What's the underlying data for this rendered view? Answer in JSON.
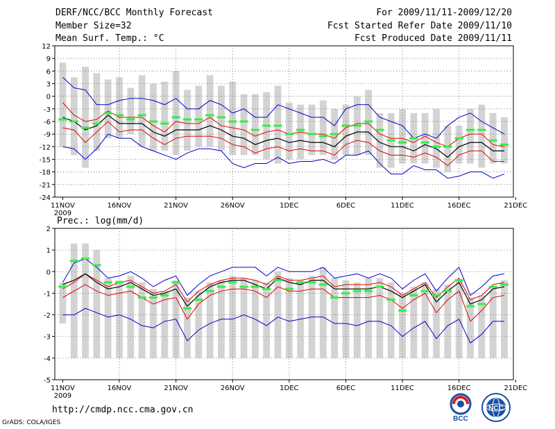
{
  "header": {
    "title": "DERF/NCC/BCC Monthly Forecast",
    "member_size": "Member Size=32",
    "variable": "Mean Surf. Temp.: °C",
    "period": "For 2009/11/11-2009/12/20",
    "started": "Fcst Started Refer Date 2009/11/10",
    "produced": "Fcst Produced Date 2009/11/11"
  },
  "footer": {
    "url": "http://cmdp.ncc.cma.gov.cn",
    "credit": "GrADS: COLA/IGES",
    "logo_bcc": "BCC",
    "logo_ncc": "NCC"
  },
  "colors": {
    "spread": "#d3d3d3",
    "mean": "#000000",
    "inner": "#e00000",
    "outer": "#0000cc",
    "obs": "#33ee44",
    "grid": "#666666"
  },
  "chart_data": [
    {
      "type": "line",
      "title": "Mean Surf. Temp.: °C",
      "ylim": [
        -24,
        12
      ],
      "yticks": [
        -24,
        -21,
        -18,
        -15,
        -12,
        -9,
        -6,
        -3,
        0,
        3,
        6,
        9,
        12
      ],
      "xlabels": [
        "11NOV",
        "16NOV",
        "21NOV",
        "26NOV",
        "1DEC",
        "6DEC",
        "11DEC",
        "16DEC",
        "21DEC"
      ],
      "xsublabel": "2009",
      "x": [
        1,
        2,
        3,
        4,
        5,
        6,
        7,
        8,
        9,
        10,
        11,
        12,
        13,
        14,
        15,
        16,
        17,
        18,
        19,
        20,
        21,
        22,
        23,
        24,
        25,
        26,
        27,
        28,
        29,
        30,
        31,
        32,
        33,
        34,
        35,
        36,
        37,
        38,
        39,
        40
      ],
      "series": [
        {
          "name": "spread_max",
          "values": [
            8,
            4.5,
            7,
            5.5,
            4,
            4.5,
            2,
            5,
            3,
            3.5,
            6,
            1.5,
            2.5,
            5,
            2.5,
            3.5,
            0.5,
            0.5,
            1,
            2.5,
            -1.5,
            -2,
            -2,
            -1,
            -3,
            -2,
            0,
            1.5,
            -4,
            -4,
            -3,
            -4,
            -4,
            -3,
            -7,
            -7,
            -3,
            -2,
            -4,
            -5
          ]
        },
        {
          "name": "spread_min",
          "values": [
            -12,
            -14,
            -17,
            -13,
            -10,
            -10,
            -9,
            -12,
            -13,
            -13,
            -14,
            -13,
            -12,
            -12,
            -13,
            -14,
            -14,
            -14,
            -15,
            -16,
            -15,
            -15,
            -14,
            -14,
            -15,
            -14,
            -14,
            -14,
            -17,
            -17,
            -16,
            -16,
            -16,
            -17,
            -18,
            -16,
            -16,
            -17,
            -16,
            -16
          ]
        },
        {
          "name": "outer_max",
          "values": [
            4.5,
            2,
            1.5,
            -2,
            -2,
            -1,
            -0.5,
            -0.5,
            -1,
            -2,
            -0.5,
            -3,
            -3,
            -1,
            -2,
            -4,
            -3,
            -5,
            -5,
            -2,
            -3,
            -4,
            -5,
            -5,
            -7,
            -3,
            -2,
            -2,
            -5,
            -6,
            -7,
            -10,
            -9,
            -10,
            -7,
            -5,
            -4,
            -6,
            -7.5,
            -9
          ]
        },
        {
          "name": "inner_max",
          "values": [
            -1.5,
            -4.5,
            -6,
            -5.5,
            -3.5,
            -5,
            -5,
            -5,
            -7,
            -8.5,
            -6,
            -6.5,
            -6.5,
            -5,
            -7,
            -7.5,
            -8,
            -9.5,
            -8.5,
            -8,
            -9,
            -8.5,
            -9,
            -9,
            -10,
            -7.5,
            -6.5,
            -6.5,
            -9,
            -10,
            -10,
            -11,
            -9.5,
            -11,
            -12,
            -10,
            -9,
            -9,
            -11.5,
            -12
          ]
        },
        {
          "name": "mean",
          "values": [
            -5,
            -6,
            -8,
            -7,
            -4.5,
            -6.5,
            -6.5,
            -6.5,
            -8.5,
            -9.5,
            -8,
            -8,
            -8,
            -7,
            -8,
            -9.5,
            -10,
            -11.5,
            -10.5,
            -10,
            -11,
            -10.5,
            -11,
            -11,
            -12,
            -9.5,
            -8.5,
            -8.5,
            -11,
            -12,
            -12,
            -13,
            -11.5,
            -12.5,
            -14.5,
            -12,
            -11,
            -11,
            -13,
            -13
          ]
        },
        {
          "name": "inner_min",
          "values": [
            -7.5,
            -8,
            -11,
            -8.5,
            -6,
            -8.5,
            -8,
            -8,
            -10,
            -11.5,
            -10,
            -9.5,
            -9.5,
            -9.5,
            -10,
            -11.5,
            -12,
            -13.5,
            -12.5,
            -12,
            -13,
            -12.5,
            -13,
            -13,
            -14,
            -11.5,
            -10.5,
            -11,
            -13,
            -14,
            -14,
            -14.5,
            -13.5,
            -14.5,
            -16.5,
            -14,
            -13,
            -13,
            -15.5,
            -15.5
          ]
        },
        {
          "name": "outer_min",
          "values": [
            -12,
            -12.5,
            -15,
            -12.5,
            -9,
            -10,
            -10,
            -12,
            -13,
            -14,
            -15,
            -13.5,
            -12.5,
            -12.5,
            -13,
            -16,
            -17,
            -16,
            -16,
            -14.5,
            -16,
            -15.5,
            -15.5,
            -15,
            -16,
            -14,
            -14,
            -13,
            -16,
            -18.5,
            -18.5,
            -16.5,
            -17.5,
            -17.5,
            -19.5,
            -19,
            -18,
            -18,
            -19.5,
            -18.5
          ]
        },
        {
          "name": "observed",
          "values": [
            -5.5,
            -6,
            -7.5,
            -6.5,
            -4,
            -4.5,
            -5.5,
            -4.5,
            -6,
            -6.5,
            -5,
            -5.5,
            -5.5,
            -4.5,
            -5,
            -6,
            -6,
            -8,
            -7,
            -7,
            -9,
            -8,
            -9,
            -9.5,
            -9,
            -7,
            -7,
            -6,
            -8,
            -10.5,
            -11,
            -10,
            -11,
            -12,
            -12,
            -10,
            -8,
            -8,
            -10.5,
            -11.5
          ]
        }
      ]
    },
    {
      "type": "line",
      "title": "Prec.: log(mm/d)",
      "ylim": [
        -5,
        2
      ],
      "yticks": [
        -5,
        -4,
        -3,
        -2,
        -1,
        0,
        1,
        2
      ],
      "xlabels": [
        "11NOV",
        "16NOV",
        "21NOV",
        "26NOV",
        "1DEC",
        "6DEC",
        "11DEC",
        "16DEC",
        "21DEC"
      ],
      "xsublabel": "2009",
      "x": [
        1,
        2,
        3,
        4,
        5,
        6,
        7,
        8,
        9,
        10,
        11,
        12,
        13,
        14,
        15,
        16,
        17,
        18,
        19,
        20,
        21,
        22,
        23,
        24,
        25,
        26,
        27,
        28,
        29,
        30,
        31,
        32,
        33,
        34,
        35,
        36,
        37,
        38,
        39,
        40
      ],
      "series": [
        {
          "name": "spread_max",
          "values": [
            -0.5,
            1.3,
            1.3,
            1,
            -0.3,
            -0.4,
            -0.2,
            -0.5,
            -0.8,
            -0.9,
            -0.4,
            -1.2,
            -0.9,
            -0.5,
            -0.4,
            -0.2,
            -0.3,
            -0.4,
            -0.5,
            0,
            -0.3,
            -0.4,
            -0.2,
            0.2,
            -0.3,
            -0.4,
            -0.5,
            -0.3,
            -0.3,
            -0.5,
            -1,
            -0.7,
            -0.5,
            -0.8,
            -0.6,
            -0.4,
            -1.2,
            -1.1,
            -0.7,
            -0.4
          ]
        },
        {
          "name": "spread_min",
          "values": [
            -2.4,
            -4,
            -4,
            -4,
            -4,
            -4,
            -4,
            -4,
            -4,
            -4,
            -4,
            -4,
            -4,
            -4,
            -4,
            -4,
            -4,
            -4,
            -4,
            -4,
            -4,
            -4,
            -4,
            -4,
            -4,
            -4,
            -4,
            -4,
            -4,
            -4,
            -4,
            -4,
            -4,
            -4,
            -4,
            -4,
            -4,
            -4,
            -4,
            -4
          ]
        },
        {
          "name": "outer_max",
          "values": [
            -0.5,
            0.4,
            0.6,
            0.2,
            -0.3,
            -0.2,
            0,
            -0.3,
            -0.7,
            -0.4,
            -0.2,
            -1.1,
            -0.6,
            -0.2,
            0,
            0.2,
            0.2,
            0.2,
            -0.2,
            0.2,
            0,
            0,
            0,
            0.2,
            -0.3,
            -0.2,
            -0.1,
            -0.3,
            -0.1,
            -0.3,
            -0.8,
            -0.4,
            -0.1,
            -0.9,
            -0.3,
            0.2,
            -1.1,
            -0.7,
            -0.2,
            -0.1
          ]
        },
        {
          "name": "inner_max",
          "values": [
            -0.8,
            -0.5,
            -0.1,
            -0.4,
            -0.7,
            -0.5,
            -0.4,
            -0.7,
            -1,
            -0.9,
            -0.6,
            -1.4,
            -0.9,
            -0.6,
            -0.4,
            -0.3,
            -0.3,
            -0.4,
            -0.6,
            -0.2,
            -0.4,
            -0.4,
            -0.3,
            -0.2,
            -0.7,
            -0.6,
            -0.6,
            -0.6,
            -0.5,
            -0.7,
            -1.1,
            -0.8,
            -0.5,
            -1.2,
            -0.7,
            -0.3,
            -1.3,
            -1.1,
            -0.6,
            -0.5
          ]
        },
        {
          "name": "mean",
          "values": [
            -0.6,
            -0.4,
            -0.1,
            -0.5,
            -0.8,
            -0.7,
            -0.5,
            -0.8,
            -1.1,
            -1,
            -0.8,
            -1.6,
            -1.1,
            -0.7,
            -0.5,
            -0.4,
            -0.4,
            -0.6,
            -0.8,
            -0.3,
            -0.5,
            -0.6,
            -0.4,
            -0.4,
            -0.8,
            -0.8,
            -0.8,
            -0.8,
            -0.7,
            -0.9,
            -1.2,
            -0.9,
            -0.6,
            -1.4,
            -0.9,
            -0.5,
            -1.5,
            -1.3,
            -0.8,
            -0.7
          ]
        },
        {
          "name": "inner_min",
          "values": [
            -1.2,
            -0.9,
            -0.6,
            -0.9,
            -1.1,
            -1,
            -0.9,
            -1.2,
            -1.5,
            -1.3,
            -1.2,
            -2.2,
            -1.5,
            -1.1,
            -0.9,
            -0.8,
            -0.8,
            -0.9,
            -1.2,
            -0.7,
            -0.9,
            -0.9,
            -0.8,
            -0.8,
            -1.2,
            -1.2,
            -1.2,
            -1.2,
            -1.1,
            -1.3,
            -1.7,
            -1.3,
            -1,
            -1.9,
            -1.3,
            -0.9,
            -2.3,
            -1.8,
            -1.2,
            -1.1
          ]
        },
        {
          "name": "outer_min",
          "values": [
            -2,
            -2,
            -1.7,
            -1.9,
            -2.1,
            -2,
            -2.2,
            -2.5,
            -2.6,
            -2.3,
            -2.2,
            -3.2,
            -2.7,
            -2.4,
            -2.2,
            -2.2,
            -2,
            -2.2,
            -2.5,
            -2.1,
            -2.3,
            -2.2,
            -2.1,
            -2.1,
            -2.4,
            -2.4,
            -2.5,
            -2.3,
            -2.3,
            -2.5,
            -3,
            -2.6,
            -2.3,
            -3.1,
            -2.5,
            -2.2,
            -3.3,
            -2.9,
            -2.3,
            -2.3
          ]
        },
        {
          "name": "observed",
          "values": [
            -0.7,
            0.5,
            0.6,
            0.3,
            -0.5,
            -0.5,
            -0.7,
            -1.2,
            -1.2,
            -1.1,
            -0.5,
            -1.7,
            -1.3,
            -0.9,
            -0.7,
            -0.5,
            -0.7,
            -0.7,
            -0.8,
            -0.4,
            -0.8,
            -0.5,
            -0.5,
            -0.6,
            -1.2,
            -1,
            -0.9,
            -0.9,
            -0.7,
            -1.3,
            -1.8,
            -1.1,
            -0.9,
            -1.1,
            -0.9,
            -0.4,
            -1.6,
            -1.5,
            -0.7,
            -0.6
          ]
        }
      ]
    }
  ]
}
